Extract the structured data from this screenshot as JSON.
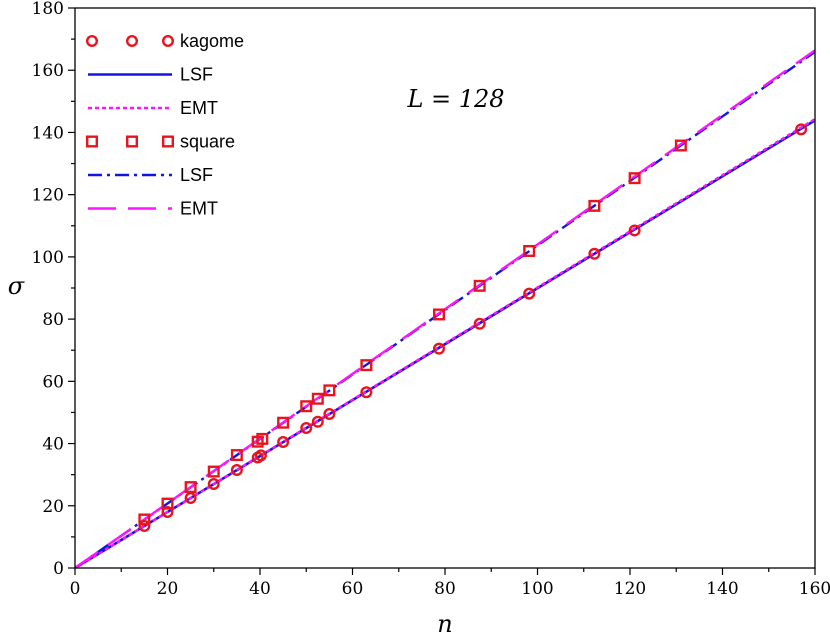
{
  "chart_data": {
    "type": "scatter",
    "title": "",
    "xlabel": "n",
    "ylabel": "σ",
    "xlim": [
      0,
      160
    ],
    "ylim": [
      0,
      180
    ],
    "xticks": [
      0,
      20,
      40,
      60,
      80,
      100,
      120,
      140,
      160
    ],
    "yticks": [
      0,
      20,
      40,
      60,
      80,
      100,
      120,
      140,
      160,
      180
    ],
    "grid": false,
    "legend_position": "top-left",
    "annotation": "L = 128",
    "series": [
      {
        "name": "kagome",
        "kind": "markers",
        "marker": "circle",
        "color": "#e8141e",
        "x": [
          15,
          20,
          25,
          30,
          35,
          39.5,
          40.2,
          45,
          50,
          52.5,
          55,
          63,
          78.7,
          87.5,
          98.2,
          112.3,
          121,
          157
        ],
        "y": [
          13.5,
          18,
          22.5,
          27,
          31.5,
          35.5,
          36.2,
          40.5,
          45,
          47,
          49.5,
          56.5,
          70.5,
          78.5,
          88.2,
          101,
          108.5,
          141
        ]
      },
      {
        "name": "LSF",
        "kind": "line",
        "style": "solid",
        "color": "#1414e0",
        "x": [
          0,
          160
        ],
        "y": [
          0,
          143.9
        ]
      },
      {
        "name": "EMT",
        "kind": "line",
        "style": "dotted",
        "color": "#ff14ff",
        "x": [
          0,
          160
        ],
        "y": [
          0,
          144.3
        ]
      },
      {
        "name": "square",
        "kind": "markers",
        "marker": "square",
        "color": "#e8141e",
        "x": [
          15,
          20,
          25,
          30,
          35,
          39.5,
          40.5,
          45,
          50,
          52.5,
          55,
          63,
          78.7,
          87.5,
          98.2,
          112.3,
          121,
          131
        ],
        "y": [
          15.6,
          20.7,
          26,
          31,
          36.3,
          40.6,
          41.5,
          46.7,
          52,
          54.4,
          57.1,
          65.2,
          81.5,
          90.7,
          101.9,
          116.4,
          125.3,
          135.8
        ]
      },
      {
        "name": "LSF",
        "kind": "line",
        "style": "dashdot",
        "color": "#1414e0",
        "x": [
          0,
          160
        ],
        "y": [
          0,
          165.9
        ]
      },
      {
        "name": "EMT",
        "kind": "line",
        "style": "longdash",
        "color": "#ff14ff",
        "x": [
          0,
          160
        ],
        "y": [
          0,
          166.4
        ]
      }
    ]
  }
}
